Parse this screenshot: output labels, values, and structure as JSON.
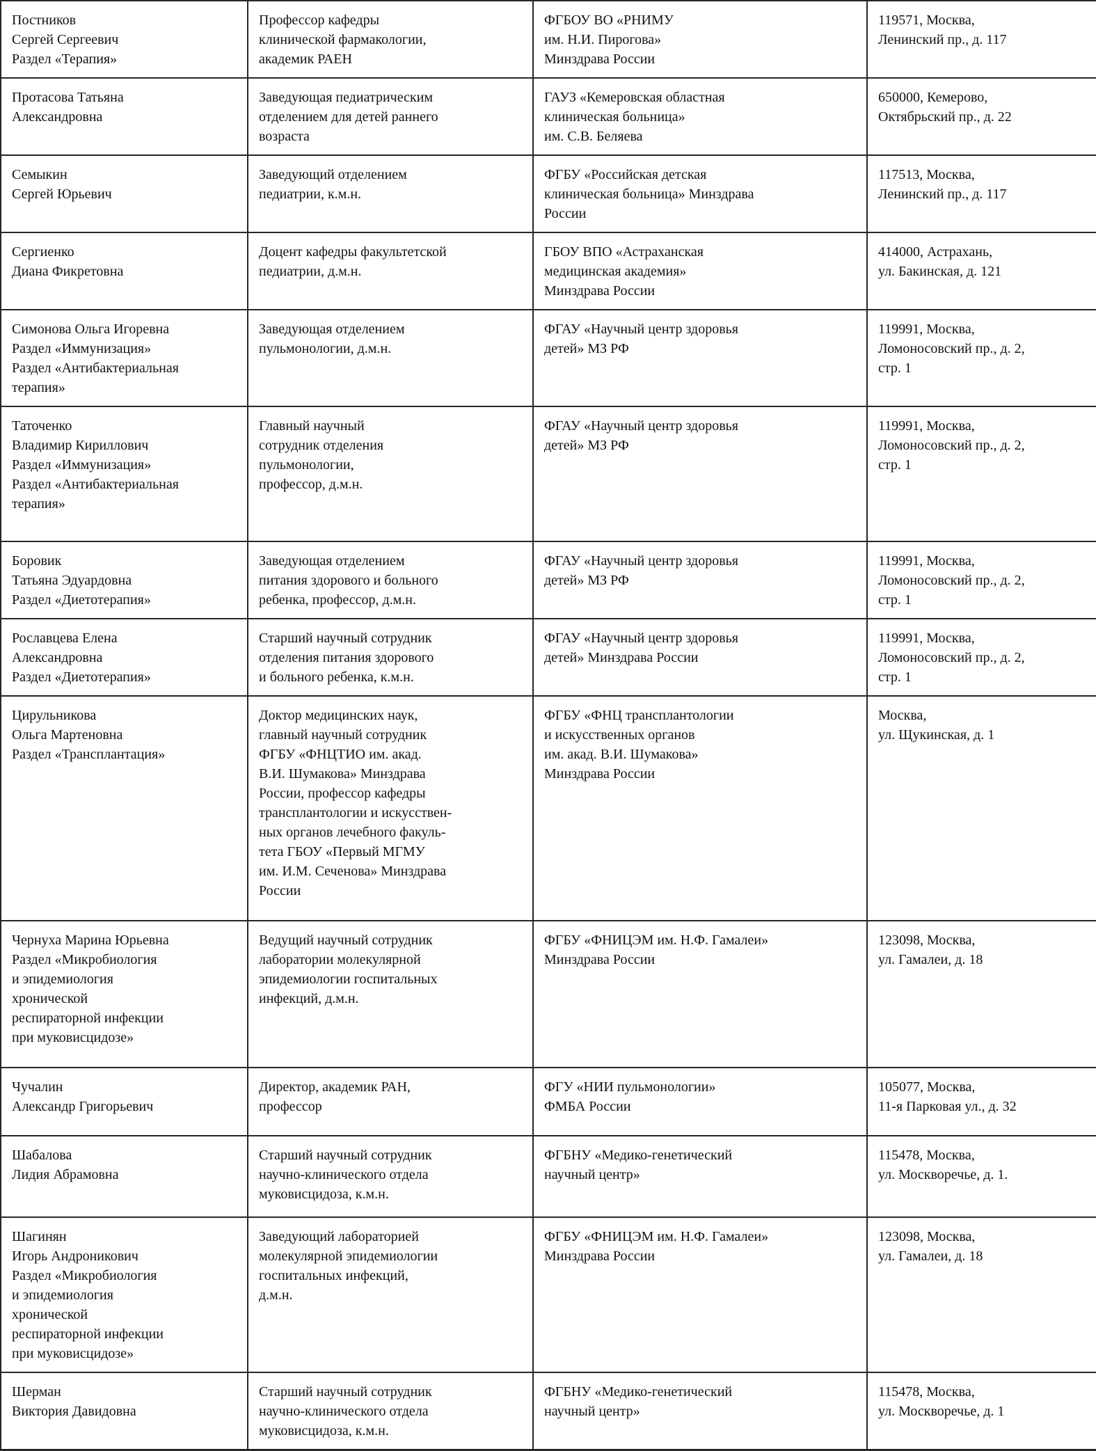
{
  "document": {
    "type": "contributors-table",
    "colors": {
      "text": "#131313",
      "border": "#262626",
      "background": "#ffffff"
    }
  },
  "table": {
    "rows": [
      {
        "name": "Постников\nСергей Сергеевич\nРаздел «Терапия»",
        "position": "Профессор кафедры\nклинической фармакологии,\nакадемик РАЕН",
        "organization": "ФГБОУ ВО «РНИМУ\nим. Н.И. Пирогова»\nМинздрава России",
        "address": "119571, Москва,\nЛенинский пр., д. 117"
      },
      {
        "name": "Протасова Татьяна\nАлександровна",
        "position": "Заведующая педиатрическим\nотделением для детей раннего\nвозраста",
        "organization": "ГАУЗ «Кемеровская областная\nклиническая больница»\nим. С.В. Беляева",
        "address": "650000, Кемерово,\nОктябрьский пр., д. 22"
      },
      {
        "name": "Семыкин\nСергей Юрьевич",
        "position": "Заведующий отделением\nпедиатрии, к.м.н.",
        "organization": "ФГБУ «Российская детская\nклиническая больница» Минздрава\nРоссии",
        "address": "117513, Москва,\nЛенинский пр., д. 117"
      },
      {
        "name": "Сергиенко\nДиана Фикретовна",
        "position": "Доцент кафедры факультетской\nпедиатрии, д.м.н.",
        "organization": "ГБОУ ВПО «Астраханская\nмедицинская академия»\nМинздрава России",
        "address": "414000, Астрахань,\nул. Бакинская, д. 121"
      },
      {
        "name": "Симонова Ольга Игоревна\nРаздел «Иммунизация»\nРаздел «Антибактериальная\nтерапия»",
        "position": "Заведующая отделением\nпульмонологии, д.м.н.",
        "organization": "ФГАУ «Научный центр здоровья\nдетей» МЗ РФ",
        "address": "119991, Москва,\nЛомоносовский пр., д. 2,\nстр. 1"
      },
      {
        "name": "Таточенко\nВладимир Кириллович\nРаздел «Иммунизация»\nРаздел «Антибактериальная\nтерапия»",
        "position": "Главный научный\nсотрудник отделения\nпульмонологии,\nпрофессор, д.м.н.",
        "organization": "ФГАУ «Научный центр здоровья\nдетей» МЗ РФ",
        "address": "119991, Москва,\nЛомоносовский пр., д. 2,\nстр. 1"
      },
      {
        "name": "Боровик\nТатьяна Эдуардовна\nРаздел «Диетотерапия»",
        "position": "Заведующая отделением\nпитания здорового и больного\nребенка, профессор, д.м.н.",
        "organization": "ФГАУ «Научный центр здоровья\nдетей» МЗ РФ",
        "address": "119991, Москва,\nЛомоносовский пр., д. 2,\nстр. 1"
      },
      {
        "name": "Рославцева Елена\nАлександровна\nРаздел «Диетотерапия»",
        "position": "Старший научный сотрудник\nотделения питания здорового\nи больного ребенка, к.м.н.",
        "organization": "ФГАУ «Научный центр здоровья\nдетей» Минздрава России",
        "address": "119991, Москва,\nЛомоносовский пр., д. 2,\nстр. 1"
      },
      {
        "name": "Цирульникова\nОльга Мартеновна\nРаздел «Трансплантация»",
        "position": "Доктор медицинских наук,\nглавный научный сотрудник\nФГБУ «ФНЦТИО им. акад.\nВ.И. Шумакова» Минздрава\nРоссии, профессор кафедры\nтрансплантологии и искусствен-\nных органов лечебного факуль-\nтета ГБОУ «Первый МГМУ\nим. И.М. Сеченова» Минздрава\nРоссии",
        "organization": "ФГБУ «ФНЦ трансплантологии\nи искусственных органов\nим. акад. В.И. Шумакова»\nМинздрава России",
        "address": "Москва,\nул. Щукинская, д. 1"
      },
      {
        "name": "Чернуха Марина Юрьевна\nРаздел «Микробиология\nи эпидемиология\nхронической\nреспираторной инфекции\nпри муковисцидозе»",
        "position": "Ведущий научный сотрудник\nлаборатории молекулярной\nэпидемиологии госпитальных\nинфекций, д.м.н.",
        "organization": "ФГБУ «ФНИЦЭМ им. Н.Ф. Гамалеи»\nМинздрава России",
        "address": "123098, Москва,\nул. Гамалеи, д. 18"
      },
      {
        "name": "Чучалин\nАлександр Григорьевич",
        "position": "Директор, академик РАН,\nпрофессор",
        "organization": "ФГУ «НИИ пульмонологии»\nФМБА России",
        "address": "105077, Москва,\n11-я Парковая ул., д. 32"
      },
      {
        "name": "Шабалова\nЛидия Абрамовна",
        "position": "Старший научный сотрудник\nнаучно-клинического отдела\nмуковисцидоза, к.м.н.",
        "organization": "ФГБНУ «Медико-генетический\nнаучный центр»",
        "address": "115478, Москва,\nул. Москворечье, д. 1."
      },
      {
        "name": "Шагинян\nИгорь Андроникович\nРаздел «Микробиология\nи эпидемиология\nхронической\nреспираторной инфекции\nпри муковисцидозе»",
        "position": "Заведующий лабораторией\nмолекулярной эпидемиологии\nгоспитальных инфекций,\nд.м.н.",
        "organization": "ФГБУ «ФНИЦЭМ им. Н.Ф. Гамалеи»\nМинздрава России",
        "address": "123098, Москва,\nул. Гамалеи, д. 18"
      },
      {
        "name": "Шерман\nВиктория Давидовна",
        "position": "Старший научный сотрудник\nнаучно-клинического отдела\nмуковисцидоза, к.м.н.",
        "organization": "ФГБНУ «Медико-генетический\nнаучный центр»",
        "address": "115478, Москва,\nул. Москворечье, д. 1"
      }
    ]
  }
}
